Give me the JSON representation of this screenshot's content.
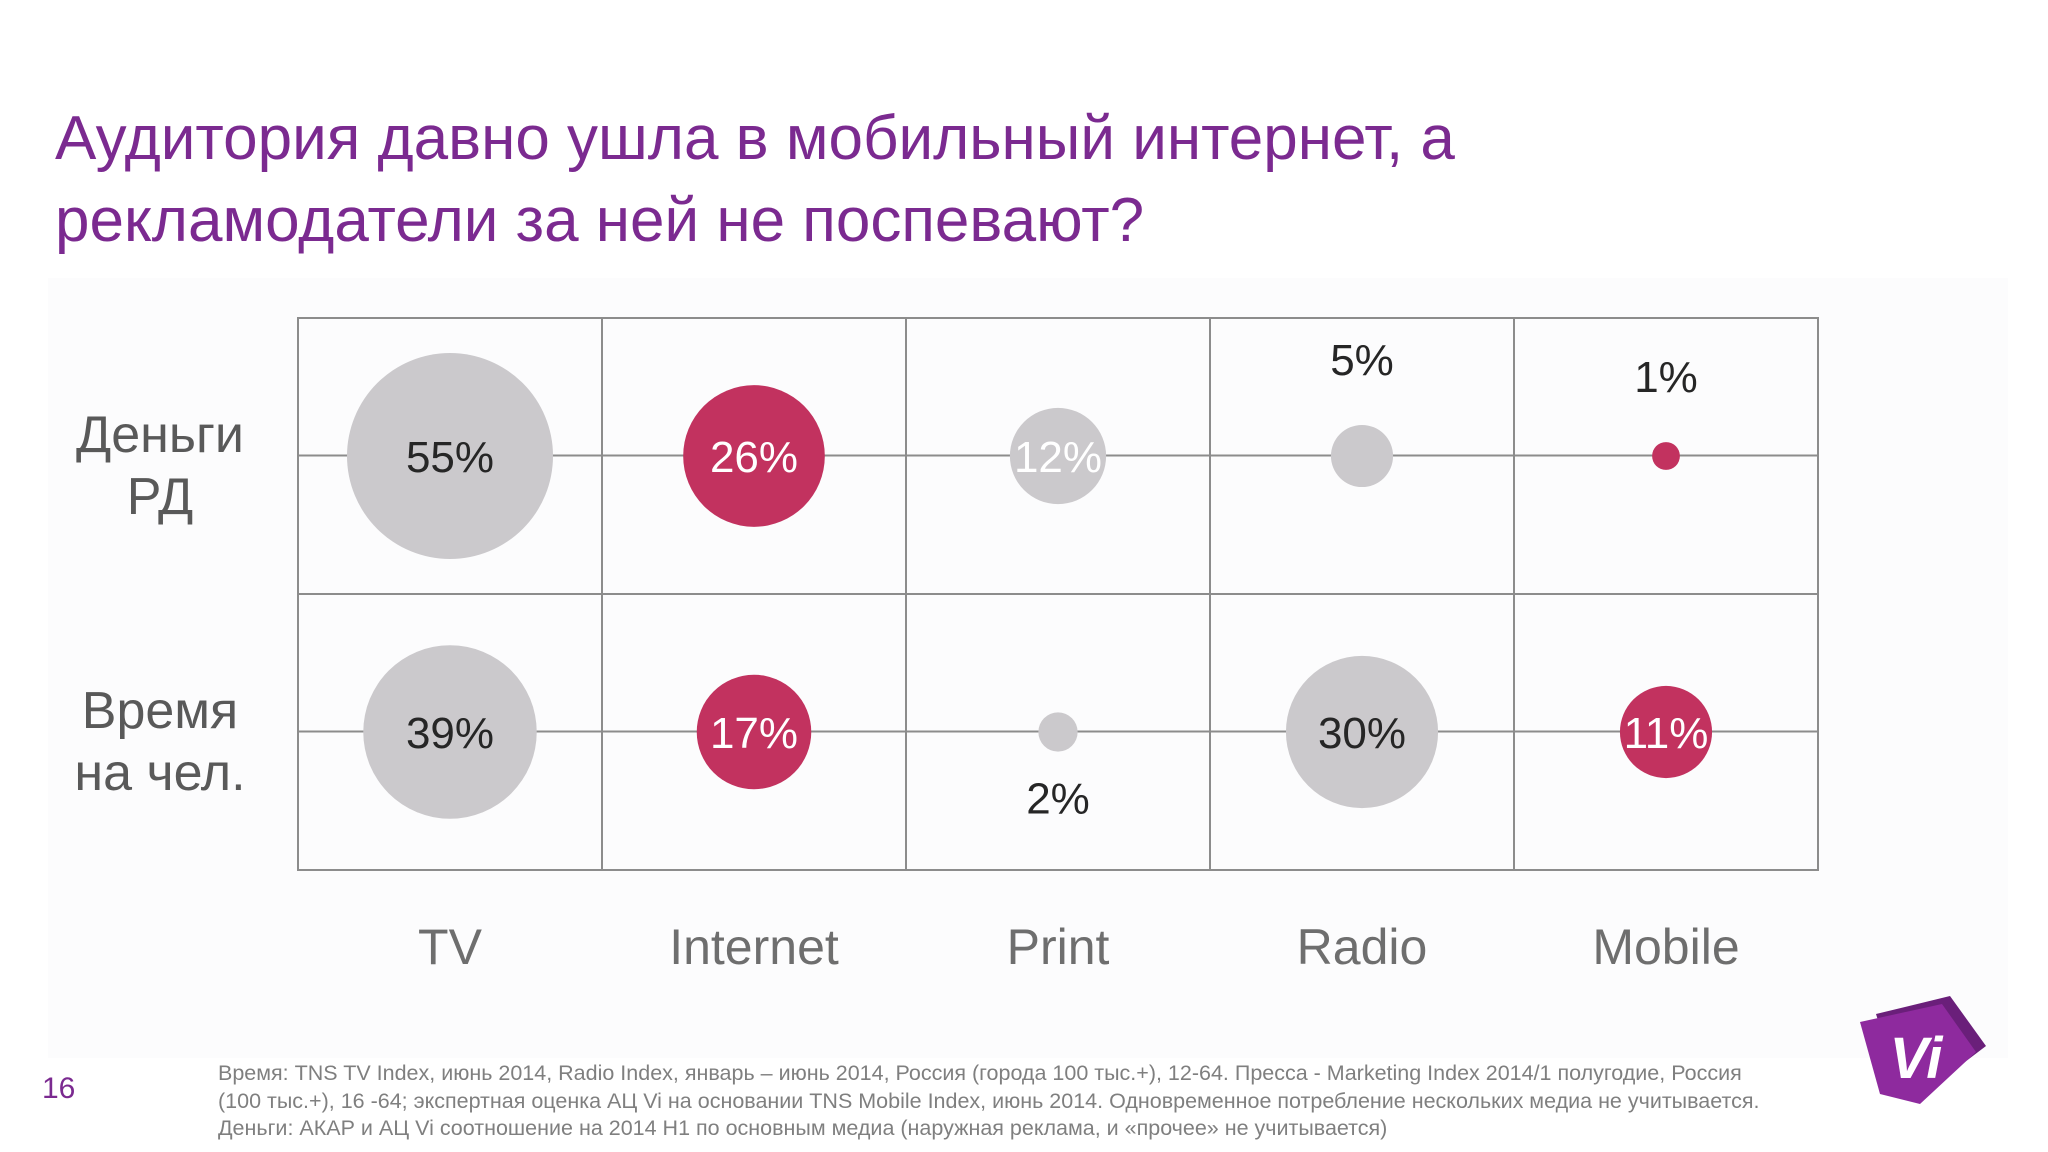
{
  "slide": {
    "title_lines": [
      "Аудитория давно ушла в мобильный интернет, а",
      "рекламодатели за ней не поспевают?"
    ],
    "page_number": "16",
    "footnote_lines": [
      "Время: TNS TV Index, июнь 2014, Radio Index, январь – июнь 2014, Россия (города 100 тыс.+), 12-64. Пресса - Marketing Index 2014/1 полугодие, Россия",
      "(100 тыс.+), 16 -64; экспертная оценка АЦ Vi на основании TNS Mobile Index, июнь 2014. Одновременное потребление нескольких медиа не учитывается.",
      "Деньги: АКАР и АЦ Vi соотношение на 2014 Н1 по основным медиа (наружная реклама, и «прочее» не учитывается)"
    ],
    "logo_text": "Vi",
    "logo_icon": "vi-logo-icon"
  },
  "colors": {
    "title": "#7b2a90",
    "highlight": "#c2325f",
    "neutral": "#cbc9cc",
    "grid": "#8c8c8c",
    "logo": "#8e2a9e"
  },
  "chart_data": {
    "type": "bubble-matrix",
    "categories": [
      "TV",
      "Internet",
      "Print",
      "Radio",
      "Mobile"
    ],
    "rows": [
      {
        "label_lines": [
          "Деньги",
          "РД"
        ],
        "values": [
          55,
          26,
          12,
          5,
          1
        ],
        "labels": [
          "55%",
          "26%",
          "12%",
          "5%",
          "1%"
        ]
      },
      {
        "label_lines": [
          "Время",
          "на чел."
        ],
        "values": [
          39,
          17,
          2,
          30,
          11
        ],
        "labels": [
          "39%",
          "17%",
          "2%",
          "30%",
          "11%"
        ]
      }
    ],
    "highlighted_categories": [
      "Internet",
      "Mobile"
    ],
    "grid": true
  }
}
